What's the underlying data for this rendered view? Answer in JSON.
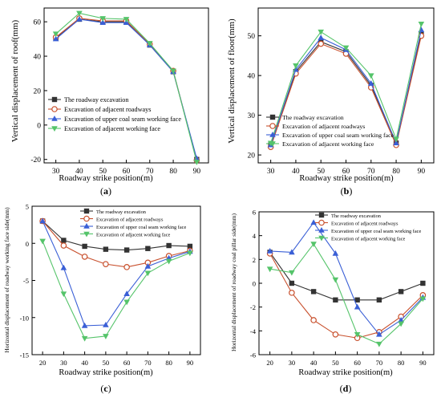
{
  "chart_data": [
    {
      "type": "line",
      "panel_label": "(a)",
      "xlabel": "Roadway strike position(m)",
      "ylabel": "Vertical displacement of roof(mm)",
      "x": [
        30,
        40,
        50,
        60,
        70,
        80,
        90
      ],
      "xlim": [
        25,
        95
      ],
      "ylim": [
        -22,
        68
      ],
      "yticks": [
        -20,
        0,
        20,
        40,
        60
      ],
      "legend": "center-left",
      "series": [
        {
          "name": "The roadway excavation",
          "color": "#333333",
          "marker": "square",
          "values": [
            50.5,
            61.5,
            60.0,
            60.0,
            46.5,
            31.0,
            -20.0
          ]
        },
        {
          "name": "Excavation of adjacent roadways",
          "color": "#c8502d",
          "marker": "circle",
          "values": [
            51.0,
            62.0,
            60.5,
            60.5,
            47.0,
            31.5,
            -20.5
          ]
        },
        {
          "name": "Excavation of upper coal seam working face",
          "color": "#3a5fd6",
          "marker": "triangle-up",
          "values": [
            50.0,
            61.5,
            59.5,
            59.5,
            46.5,
            31.0,
            -19.5
          ]
        },
        {
          "name": "Excavation of adjacent working face",
          "color": "#55c46a",
          "marker": "triangle-down",
          "values": [
            53.0,
            65.0,
            62.0,
            61.5,
            47.5,
            31.5,
            -21.5
          ]
        }
      ]
    },
    {
      "type": "line",
      "panel_label": "(b)",
      "xlabel": "Roadway strike position(m)",
      "ylabel": "Vertical displacement of floor(mm)",
      "x": [
        30,
        40,
        50,
        60,
        70,
        80,
        90
      ],
      "xlim": [
        25,
        95
      ],
      "ylim": [
        18,
        57
      ],
      "yticks": [
        20,
        30,
        40,
        50
      ],
      "legend": "bottom-left",
      "series": [
        {
          "name": "The roadway excavation",
          "color": "#333333",
          "marker": "square",
          "values": [
            22.5,
            41.0,
            48.5,
            46.0,
            37.5,
            23.0,
            50.5
          ]
        },
        {
          "name": "Excavation of adjacent roadways",
          "color": "#c8502d",
          "marker": "circle",
          "values": [
            22.0,
            40.5,
            48.0,
            45.5,
            37.0,
            22.5,
            50.0
          ]
        },
        {
          "name": "Excavation of upper coal seam working face",
          "color": "#3a5fd6",
          "marker": "triangle-up",
          "values": [
            22.5,
            41.5,
            49.5,
            46.5,
            38.0,
            23.0,
            51.5
          ]
        },
        {
          "name": "Excavation of adjacent working face",
          "color": "#55c46a",
          "marker": "triangle-down",
          "values": [
            23.0,
            42.5,
            51.0,
            47.0,
            40.0,
            24.0,
            53.0
          ]
        }
      ]
    },
    {
      "type": "line",
      "panel_label": "(c)",
      "xlabel": "Roadway strike position(m)",
      "ylabel": "Horizontal displacement of roadway working face side(mm)",
      "x": [
        20,
        30,
        40,
        50,
        60,
        70,
        80,
        90
      ],
      "xlim": [
        15,
        95
      ],
      "ylim": [
        -15,
        5
      ],
      "yticks": [
        -15,
        -10,
        -5,
        0,
        5
      ],
      "legend": "top-right",
      "series": [
        {
          "name": "The roadway excavation",
          "color": "#333333",
          "marker": "square",
          "values": [
            3.0,
            0.4,
            -0.4,
            -0.8,
            -0.9,
            -0.7,
            -0.3,
            -0.4
          ]
        },
        {
          "name": "Excavation of adjacent roadways",
          "color": "#c8502d",
          "marker": "circle",
          "values": [
            3.0,
            -0.3,
            -1.8,
            -2.8,
            -3.2,
            -2.6,
            -1.7,
            -1.0
          ]
        },
        {
          "name": "Excavation of upper coal seam working face",
          "color": "#3a5fd6",
          "marker": "triangle-up",
          "values": [
            3.0,
            -3.3,
            -11.1,
            -11.0,
            -6.8,
            -3.1,
            -2.0,
            -1.1
          ]
        },
        {
          "name": "Excavation of adjacent working face",
          "color": "#55c46a",
          "marker": "triangle-down",
          "values": [
            0.3,
            -6.8,
            -12.8,
            -12.5,
            -7.9,
            -4.0,
            -2.4,
            -1.3
          ]
        }
      ]
    },
    {
      "type": "line",
      "panel_label": "(d)",
      "xlabel": "Roadway strike position(m)",
      "ylabel": "Horizontal displacement of roadway coal pillar side(mm)",
      "x": [
        20,
        30,
        40,
        50,
        60,
        70,
        80,
        90
      ],
      "xlim": [
        15,
        95
      ],
      "ylim": [
        -6,
        6
      ],
      "yticks": [
        -6,
        -4,
        -2,
        0,
        2,
        4,
        6
      ],
      "legend": "top-right",
      "series": [
        {
          "name": "The roadway excavation",
          "color": "#333333",
          "marker": "square",
          "values": [
            2.6,
            0.0,
            -0.7,
            -1.4,
            -1.4,
            -1.4,
            -0.7,
            0.0
          ]
        },
        {
          "name": "Excavation of adjacent roadways",
          "color": "#c8502d",
          "marker": "circle",
          "values": [
            2.5,
            -0.8,
            -3.1,
            -4.3,
            -4.6,
            -4.1,
            -2.8,
            -1.0
          ]
        },
        {
          "name": "Excavation of upper coal seam working face",
          "color": "#3a5fd6",
          "marker": "triangle-up",
          "values": [
            2.7,
            2.6,
            5.1,
            2.5,
            -2.0,
            -4.3,
            -3.1,
            -1.2
          ]
        },
        {
          "name": "Excavation of adjacent working face",
          "color": "#55c46a",
          "marker": "triangle-down",
          "values": [
            1.2,
            0.9,
            3.3,
            0.3,
            -4.3,
            -5.1,
            -3.4,
            -1.3
          ]
        }
      ]
    }
  ]
}
